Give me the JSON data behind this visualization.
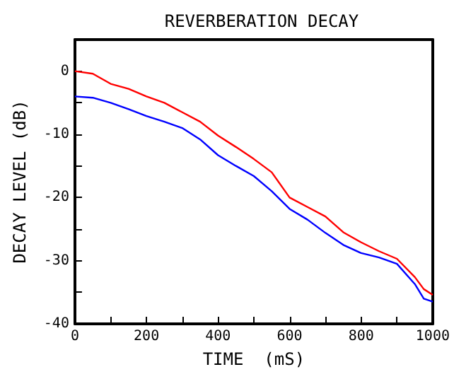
{
  "chart_data": {
    "type": "line",
    "title": "REVERBERATION DECAY",
    "xlabel": "TIME  (mS)",
    "ylabel": "DECAY LEVEL (dB)",
    "x": [
      0,
      50,
      100,
      150,
      200,
      250,
      300,
      350,
      400,
      450,
      500,
      550,
      600,
      650,
      700,
      750,
      800,
      850,
      900,
      950,
      975,
      1000
    ],
    "series": [
      {
        "color": "#ff0000",
        "values": [
          0,
          -0.4,
          -2,
          -2.8,
          -4,
          -5,
          -6.5,
          -8,
          -10.2,
          -12,
          -13.9,
          -16,
          -20,
          -21.5,
          -23,
          -25.5,
          -27.1,
          -28.5,
          -29.7,
          -32.6,
          -34.5,
          -35.4
        ]
      },
      {
        "color": "#0000ff",
        "values": [
          -4,
          -4.2,
          -5,
          -6,
          -7.1,
          -8,
          -9,
          -10.8,
          -13.3,
          -15,
          -16.6,
          -19,
          -21.8,
          -23.5,
          -25.6,
          -27.5,
          -28.8,
          -29.5,
          -30.5,
          -33.7,
          -36,
          -36.5
        ]
      }
    ],
    "xlim": [
      0,
      1000
    ],
    "xticks": [
      0,
      {
        "value": 100,
        "label": null
      },
      200,
      {
        "value": 300,
        "label": null
      },
      400,
      {
        "value": 500,
        "label": null
      },
      600,
      {
        "value": 700,
        "label": null
      },
      800,
      {
        "value": 900,
        "label": null
      },
      1000
    ],
    "ylim": [
      -40,
      5
    ],
    "yticks": [
      -40,
      {
        "value": -35,
        "label": null
      },
      -30,
      {
        "value": -25,
        "label": null
      },
      -20,
      {
        "value": -15,
        "label": null
      },
      -10,
      {
        "value": -5,
        "label": null
      },
      0
    ],
    "grid": false,
    "marker": "none",
    "line_style": "solid"
  }
}
